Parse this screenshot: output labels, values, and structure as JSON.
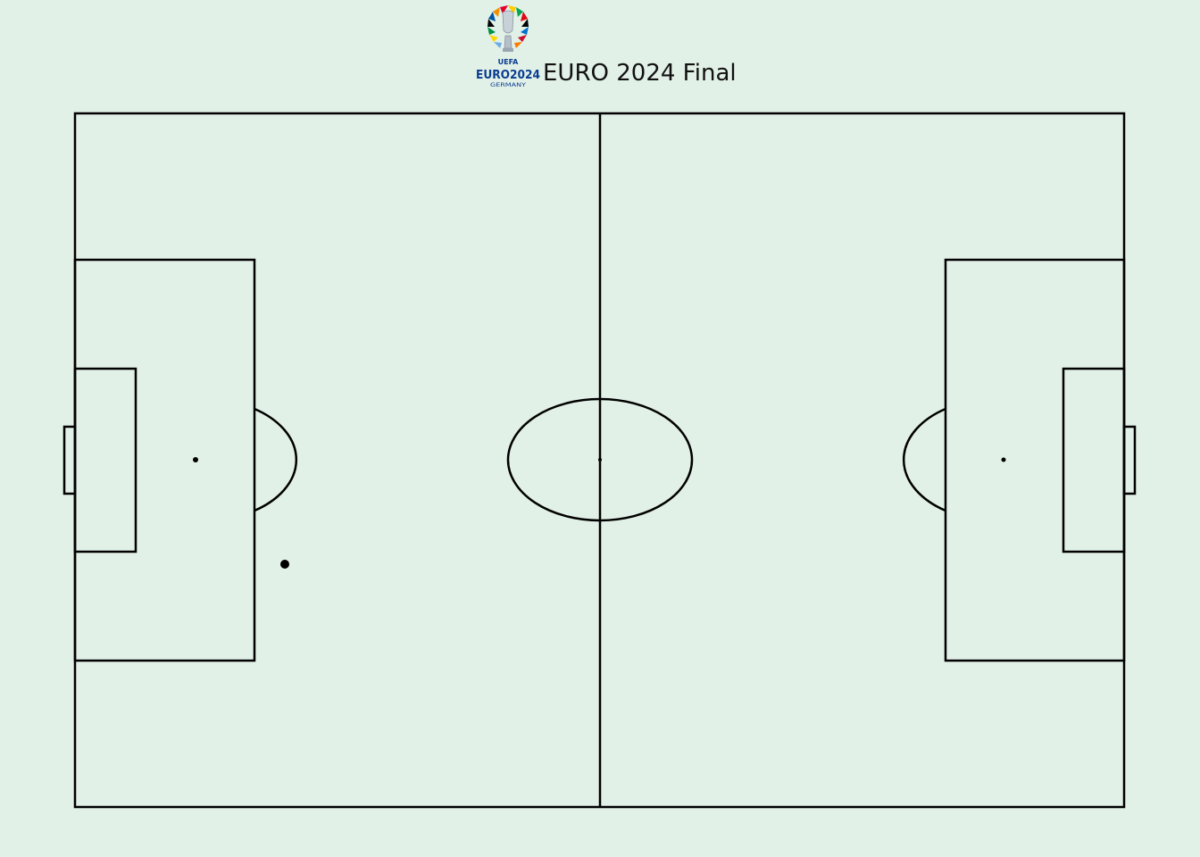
{
  "title": "EURO 2024 Final",
  "logo": {
    "wordmark": "EURO2024",
    "org": "UEFA",
    "sub": "GERMANY",
    "icon": "euro-2024-trophy-logo",
    "primary_color": "#0b3d91"
  },
  "pitch": {
    "background": "#e2f1e7",
    "line_color": "#000000"
  },
  "ball": {
    "icon": "ball-marker",
    "color": "#000000"
  }
}
